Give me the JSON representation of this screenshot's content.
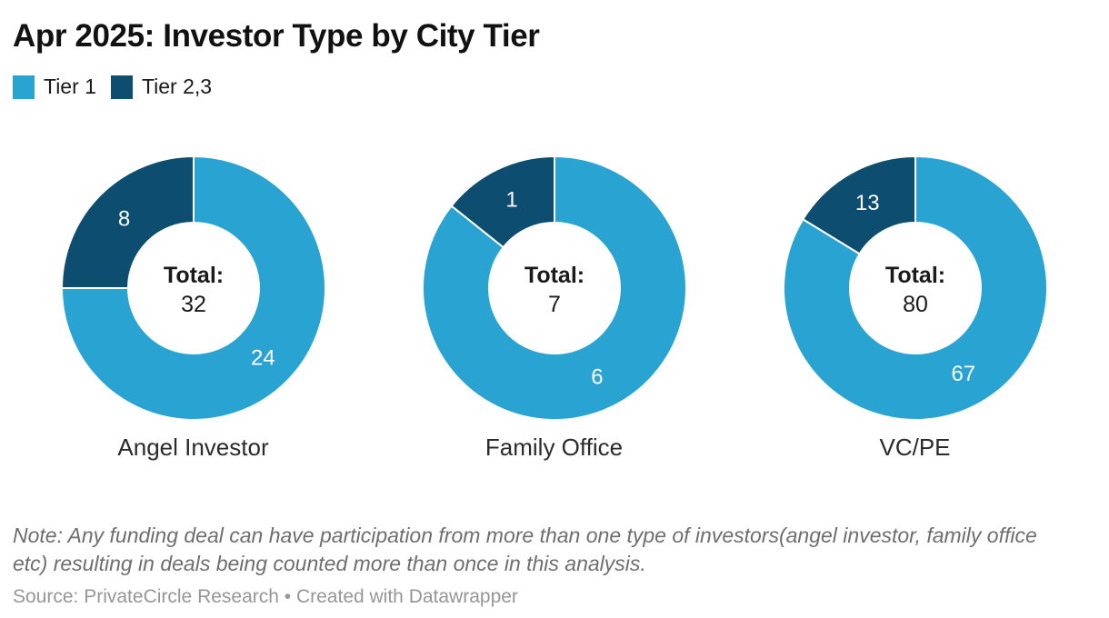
{
  "header": {
    "title": "Apr 2025: Investor Type by City Tier"
  },
  "chart_data": {
    "type": "pie",
    "subtype": "donut-small-multiples",
    "title": "Apr 2025: Investor Type by City Tier",
    "legend": {
      "position": "top-left",
      "entries": [
        {
          "label": "Tier 1",
          "color": "#29a3d1"
        },
        {
          "label": "Tier 2,3",
          "color": "#0d4d6f"
        }
      ]
    },
    "geometry": {
      "start_angle_deg": 0,
      "direction": "clockwise",
      "outer_radius": 145,
      "inner_radius": 72,
      "label_radius": 108,
      "slice_label_color": "#ffffff",
      "slice_stroke_color": "#ffffff"
    },
    "donuts": [
      {
        "category": "Angel Investor",
        "center_label": "Total:",
        "total": "32",
        "slices": [
          {
            "name": "Tier 1",
            "value": 24,
            "label": "24"
          },
          {
            "name": "Tier 2,3",
            "value": 8,
            "label": "8"
          }
        ]
      },
      {
        "category": "Family Office",
        "center_label": "Total:",
        "total": "7",
        "slices": [
          {
            "name": "Tier 1",
            "value": 6,
            "label": "6"
          },
          {
            "name": "Tier 2,3",
            "value": 1,
            "label": "1"
          }
        ]
      },
      {
        "category": "VC/PE",
        "center_label": "Total:",
        "total": "80",
        "slices": [
          {
            "name": "Tier 1",
            "value": 67,
            "label": "67"
          },
          {
            "name": "Tier 2,3",
            "value": 13,
            "label": "13"
          }
        ]
      }
    ]
  },
  "footer": {
    "note_line1": "Note: Any funding deal can have participation from more than one type of investors(angel investor, family office",
    "note_line2": "etc) resulting in deals being counted more than once in this analysis.",
    "source": "Source: PrivateCircle Research • Created with Datawrapper"
  },
  "colors": {
    "background": "#ffffff",
    "title_text": "#111111",
    "category_text": "#2b2b2b",
    "center_text": "#1a1a1a",
    "note_text": "#6e6e6e",
    "source_text": "#969696"
  }
}
